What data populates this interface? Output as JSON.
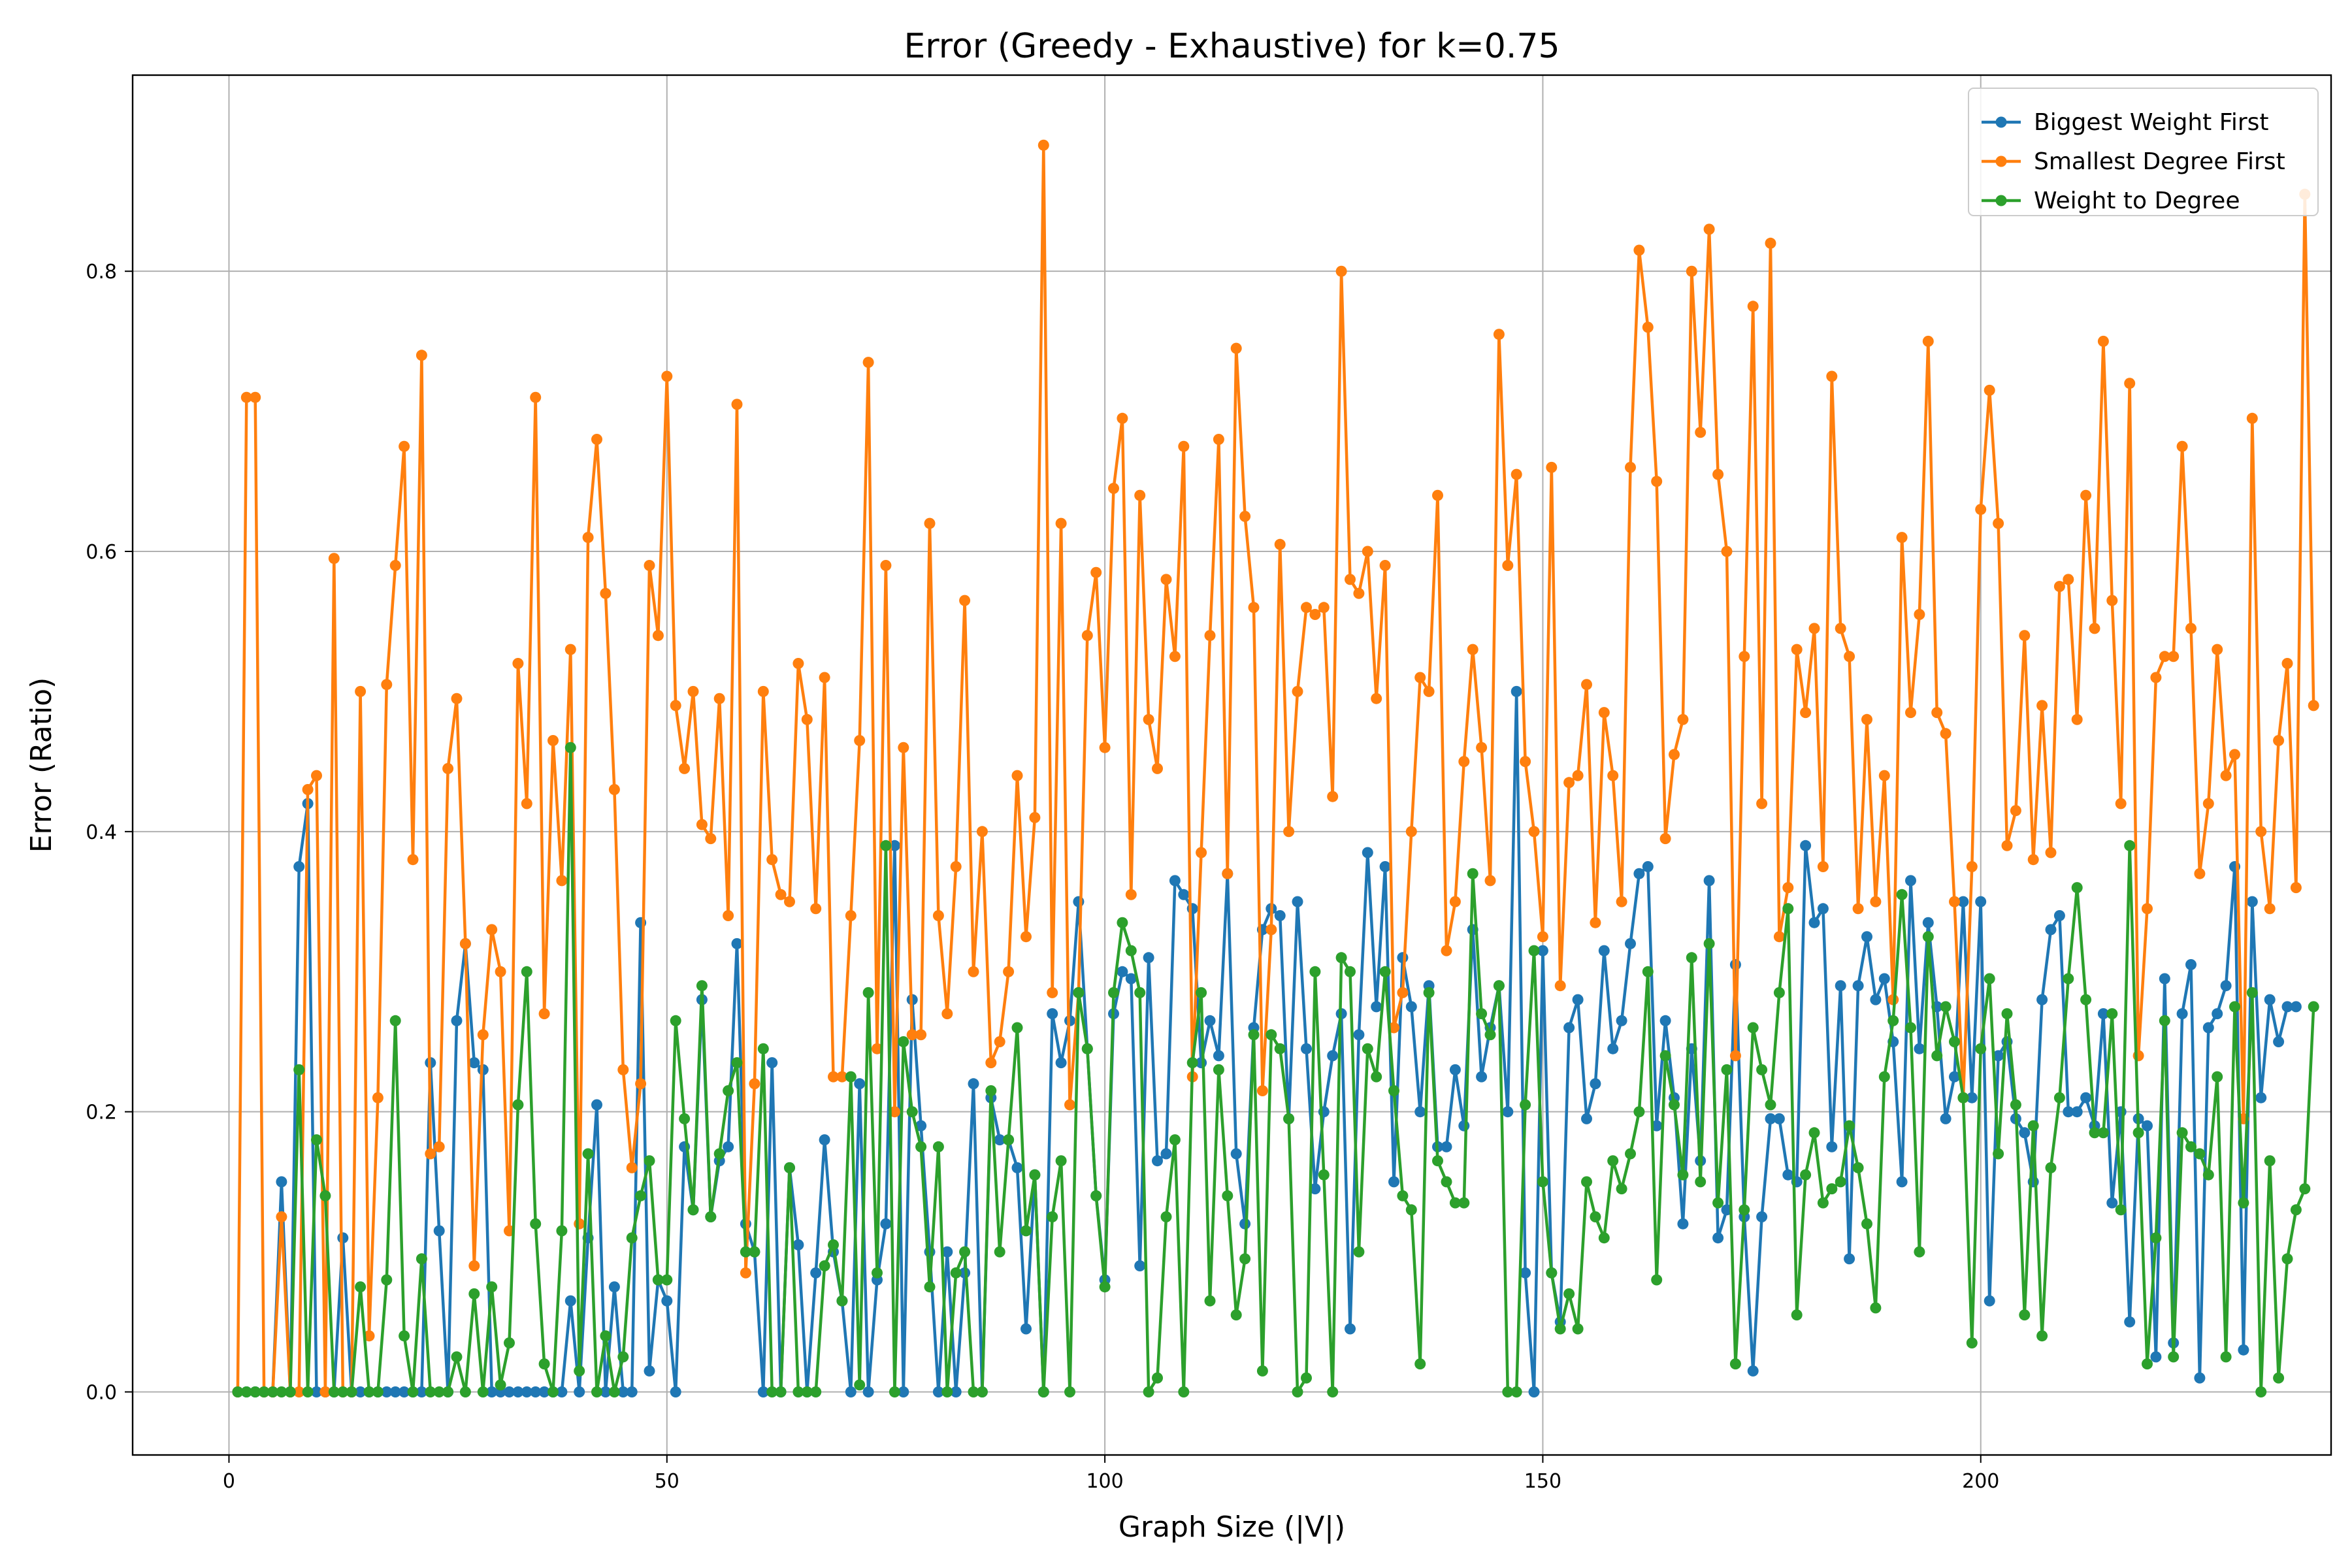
{
  "chart_data": {
    "type": "line",
    "title": "Error (Greedy - Exhaustive) for k=0.75",
    "xlabel": "Graph Size (|V|)",
    "ylabel": "Error (Ratio)",
    "xlim": [
      -11,
      240
    ],
    "ylim": [
      -0.045,
      0.94
    ],
    "xticks": [
      0,
      50,
      100,
      150,
      200
    ],
    "yticks": [
      0.0,
      0.2,
      0.4,
      0.6,
      0.8
    ],
    "xtick_labels": [
      "0",
      "50",
      "100",
      "150",
      "200"
    ],
    "ytick_labels": [
      "0.0",
      "0.2",
      "0.4",
      "0.6",
      "0.8"
    ],
    "grid": true,
    "legend_position": "top-right",
    "x_start": 1,
    "series": [
      {
        "name": "Biggest Weight First",
        "color": "#1f77b4",
        "values": [
          0,
          0,
          0,
          0,
          0,
          0.15,
          0,
          0.375,
          0.42,
          0,
          0,
          0,
          0.11,
          0,
          0,
          0,
          0,
          0,
          0,
          0,
          0,
          0,
          0.235,
          0.115,
          0,
          0.265,
          0.32,
          0.235,
          0.23,
          0,
          0,
          0,
          0,
          0,
          0,
          0,
          0,
          0,
          0.065,
          0,
          0.11,
          0.205,
          0,
          0.075,
          0,
          0,
          0.335,
          0.015,
          0.08,
          0.065,
          0,
          0.175,
          0.13,
          0.28,
          0.125,
          0.165,
          0.175,
          0.32,
          0.12,
          0.1,
          0,
          0.235,
          0,
          0.16,
          0.105,
          0,
          0.085,
          0.18,
          0.1,
          0.065,
          0,
          0.22,
          0,
          0.08,
          0.12,
          0.39,
          0,
          0.28,
          0.19,
          0.1,
          0,
          0.1,
          0,
          0.085,
          0.22,
          0,
          0.21,
          0.18,
          0.18,
          0.16,
          0.045,
          0.155,
          0,
          0.27,
          0.235,
          0.265,
          0.35,
          0.245,
          0.14,
          0.08,
          0.27,
          0.3,
          0.295,
          0.09,
          0.31,
          0.165,
          0.17,
          0.365,
          0.355,
          0.345,
          0.235,
          0.265,
          0.24,
          0.37,
          0.17,
          0.12,
          0.26,
          0.33,
          0.345,
          0.34,
          0.195,
          0.35,
          0.245,
          0.145,
          0.2,
          0.24,
          0.27,
          0.045,
          0.255,
          0.385,
          0.275,
          0.375,
          0.15,
          0.31,
          0.275,
          0.2,
          0.29,
          0.175,
          0.175,
          0.23,
          0.19,
          0.33,
          0.225,
          0.26,
          0.29,
          0.2,
          0.5,
          0.085,
          0,
          0.315,
          0.085,
          0.05,
          0.26,
          0.28,
          0.195,
          0.22,
          0.315,
          0.245,
          0.265,
          0.32,
          0.37,
          0.375,
          0.19,
          0.265,
          0.21,
          0.12,
          0.245,
          0.165,
          0.365,
          0.11,
          0.13,
          0.305,
          0.125,
          0.015,
          0.125,
          0.195,
          0.195,
          0.155,
          0.15,
          0.39,
          0.335,
          0.345,
          0.175,
          0.29,
          0.095,
          0.29,
          0.325,
          0.28,
          0.295,
          0.25,
          0.15,
          0.365,
          0.245,
          0.335,
          0.275,
          0.195,
          0.225,
          0.35,
          0.21,
          0.35,
          0.065,
          0.24,
          0.25,
          0.195,
          0.185,
          0.15,
          0.28,
          0.33,
          0.34,
          0.2,
          0.2,
          0.21,
          0.19,
          0.27,
          0.135,
          0.2,
          0.05,
          0.195,
          0.19,
          0.025,
          0.295,
          0.035,
          0.27,
          0.305,
          0.01,
          0.26,
          0.27,
          0.29,
          0.375,
          0.03,
          0.35,
          0.21,
          0.28,
          0.25,
          0.275,
          0.275
        ]
      },
      {
        "name": "Smallest Degree First",
        "color": "#ff7f0e",
        "values": [
          0,
          0.71,
          0.71,
          0,
          0,
          0.125,
          0,
          0,
          0.43,
          0.44,
          0,
          0.595,
          0,
          0,
          0.5,
          0.04,
          0.21,
          0.505,
          0.59,
          0.675,
          0.38,
          0.74,
          0.17,
          0.175,
          0.445,
          0.495,
          0.32,
          0.09,
          0.255,
          0.33,
          0.3,
          0.115,
          0.52,
          0.42,
          0.71,
          0.27,
          0.465,
          0.365,
          0.53,
          0.12,
          0.61,
          0.68,
          0.57,
          0.43,
          0.23,
          0.16,
          0.22,
          0.59,
          0.54,
          0.725,
          0.49,
          0.445,
          0.5,
          0.405,
          0.395,
          0.495,
          0.34,
          0.705,
          0.085,
          0.22,
          0.5,
          0.38,
          0.355,
          0.35,
          0.52,
          0.48,
          0.345,
          0.51,
          0.225,
          0.225,
          0.34,
          0.465,
          0.735,
          0.245,
          0.59,
          0.2,
          0.46,
          0.255,
          0.255,
          0.62,
          0.34,
          0.27,
          0.375,
          0.565,
          0.3,
          0.4,
          0.235,
          0.25,
          0.3,
          0.44,
          0.325,
          0.41,
          0.89,
          0.285,
          0.62,
          0.205,
          0.285,
          0.54,
          0.585,
          0.46,
          0.645,
          0.695,
          0.355,
          0.64,
          0.48,
          0.445,
          0.58,
          0.525,
          0.675,
          0.225,
          0.385,
          0.54,
          0.68,
          0.37,
          0.745,
          0.625,
          0.56,
          0.215,
          0.33,
          0.605,
          0.4,
          0.5,
          0.56,
          0.555,
          0.56,
          0.425,
          0.8,
          0.58,
          0.57,
          0.6,
          0.495,
          0.59,
          0.26,
          0.285,
          0.4,
          0.51,
          0.5,
          0.64,
          0.315,
          0.35,
          0.45,
          0.53,
          0.46,
          0.365,
          0.755,
          0.59,
          0.655,
          0.45,
          0.4,
          0.325,
          0.66,
          0.29,
          0.435,
          0.44,
          0.505,
          0.335,
          0.485,
          0.44,
          0.35,
          0.66,
          0.815,
          0.76,
          0.65,
          0.395,
          0.455,
          0.48,
          0.8,
          0.685,
          0.83,
          0.655,
          0.6,
          0.24,
          0.525,
          0.775,
          0.42,
          0.82,
          0.325,
          0.36,
          0.53,
          0.485,
          0.545,
          0.375,
          0.725,
          0.545,
          0.525,
          0.345,
          0.48,
          0.35,
          0.44,
          0.28,
          0.61,
          0.485,
          0.555,
          0.75,
          0.485,
          0.47,
          0.35,
          0.21,
          0.375,
          0.63,
          0.715,
          0.62,
          0.39,
          0.415,
          0.54,
          0.38,
          0.49,
          0.385,
          0.575,
          0.58,
          0.48,
          0.64,
          0.545,
          0.75,
          0.565,
          0.42,
          0.72,
          0.24,
          0.345,
          0.51,
          0.525,
          0.525,
          0.675,
          0.545,
          0.37,
          0.42,
          0.53,
          0.44,
          0.455,
          0.195,
          0.695,
          0.4,
          0.345,
          0.465,
          0.52,
          0.36,
          0.855,
          0.49
        ]
      },
      {
        "name": "Weight to Degree",
        "color": "#2ca02c",
        "values": [
          0,
          0,
          0,
          0,
          0,
          0,
          0,
          0.23,
          0,
          0.18,
          0.14,
          0,
          0,
          0,
          0.075,
          0,
          0,
          0.08,
          0.265,
          0.04,
          0,
          0.095,
          0,
          0,
          0,
          0.025,
          0,
          0.07,
          0,
          0.075,
          0.005,
          0.035,
          0.205,
          0.3,
          0.12,
          0.02,
          0,
          0.115,
          0.46,
          0.015,
          0.17,
          0,
          0.04,
          0,
          0.025,
          0.11,
          0.14,
          0.165,
          0.08,
          0.08,
          0.265,
          0.195,
          0.13,
          0.29,
          0.125,
          0.17,
          0.215,
          0.235,
          0.1,
          0.1,
          0.245,
          0,
          0,
          0.16,
          0,
          0,
          0,
          0.09,
          0.105,
          0.065,
          0.225,
          0.005,
          0.285,
          0.085,
          0.39,
          0,
          0.25,
          0.2,
          0.175,
          0.075,
          0.175,
          0,
          0.085,
          0.1,
          0,
          0,
          0.215,
          0.1,
          0.18,
          0.26,
          0.115,
          0.155,
          0,
          0.125,
          0.165,
          0,
          0.285,
          0.245,
          0.14,
          0.075,
          0.285,
          0.335,
          0.315,
          0.285,
          0,
          0.01,
          0.125,
          0.18,
          0,
          0.235,
          0.285,
          0.065,
          0.23,
          0.14,
          0.055,
          0.095,
          0.255,
          0.015,
          0.255,
          0.245,
          0.195,
          0,
          0.01,
          0.3,
          0.155,
          0,
          0.31,
          0.3,
          0.1,
          0.245,
          0.225,
          0.3,
          0.215,
          0.14,
          0.13,
          0.02,
          0.285,
          0.165,
          0.15,
          0.135,
          0.135,
          0.37,
          0.27,
          0.255,
          0.29,
          0,
          0,
          0.205,
          0.315,
          0.15,
          0.085,
          0.045,
          0.07,
          0.045,
          0.15,
          0.125,
          0.11,
          0.165,
          0.145,
          0.17,
          0.2,
          0.3,
          0.08,
          0.24,
          0.205,
          0.155,
          0.31,
          0.15,
          0.32,
          0.135,
          0.23,
          0.02,
          0.13,
          0.26,
          0.23,
          0.205,
          0.285,
          0.345,
          0.055,
          0.155,
          0.185,
          0.135,
          0.145,
          0.15,
          0.19,
          0.16,
          0.12,
          0.06,
          0.225,
          0.265,
          0.355,
          0.26,
          0.1,
          0.325,
          0.24,
          0.275,
          0.25,
          0.21,
          0.035,
          0.245,
          0.295,
          0.17,
          0.27,
          0.205,
          0.055,
          0.19,
          0.04,
          0.16,
          0.21,
          0.295,
          0.36,
          0.28,
          0.185,
          0.185,
          0.27,
          0.13,
          0.39,
          0.185,
          0.02,
          0.11,
          0.265,
          0.025,
          0.185,
          0.175,
          0.17,
          0.155,
          0.225,
          0.025,
          0.275,
          0.135,
          0.285,
          0,
          0.165,
          0.01,
          0.095,
          0.13,
          0.145,
          0.275
        ]
      }
    ]
  }
}
